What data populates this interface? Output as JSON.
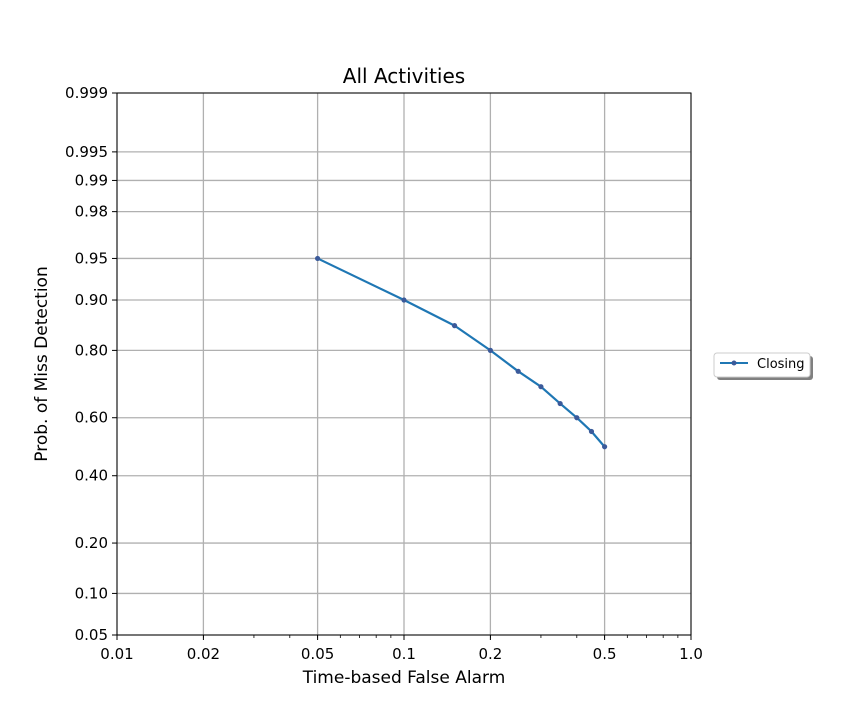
{
  "chart_data": {
    "type": "line",
    "title": "All Activities",
    "xlabel": "Time-based False Alarm",
    "ylabel": "Prob. of Miss Detection",
    "x_scale": "log",
    "y_scale": "probit",
    "xlim": [
      0.01,
      1.0
    ],
    "ylim": [
      0.05,
      0.999
    ],
    "x_ticks": [
      {
        "value": 0.01,
        "label": "0.01"
      },
      {
        "value": 0.02,
        "label": "0.02"
      },
      {
        "value": 0.05,
        "label": "0.05"
      },
      {
        "value": 0.1,
        "label": "0.1"
      },
      {
        "value": 0.2,
        "label": "0.2"
      },
      {
        "value": 0.5,
        "label": "0.5"
      },
      {
        "value": 1.0,
        "label": "1.0"
      }
    ],
    "y_ticks": [
      {
        "value": 0.05,
        "label": "0.05"
      },
      {
        "value": 0.1,
        "label": "0.10"
      },
      {
        "value": 0.2,
        "label": "0.20"
      },
      {
        "value": 0.4,
        "label": "0.40"
      },
      {
        "value": 0.6,
        "label": "0.60"
      },
      {
        "value": 0.8,
        "label": "0.80"
      },
      {
        "value": 0.9,
        "label": "0.90"
      },
      {
        "value": 0.95,
        "label": "0.95"
      },
      {
        "value": 0.98,
        "label": "0.98"
      },
      {
        "value": 0.99,
        "label": "0.99"
      },
      {
        "value": 0.995,
        "label": "0.995"
      },
      {
        "value": 0.999,
        "label": "0.999"
      }
    ],
    "grid": true,
    "legend": {
      "placement": "right-outside"
    },
    "series": [
      {
        "name": "Closing",
        "color": "#1f77b4",
        "marker_color": "#3b5a9a",
        "x": [
          0.05,
          0.1,
          0.15,
          0.2,
          0.25,
          0.3,
          0.35,
          0.4,
          0.45,
          0.5
        ],
        "y": [
          0.95,
          0.9,
          0.855,
          0.8,
          0.745,
          0.7,
          0.647,
          0.6,
          0.553,
          0.5
        ]
      }
    ]
  }
}
